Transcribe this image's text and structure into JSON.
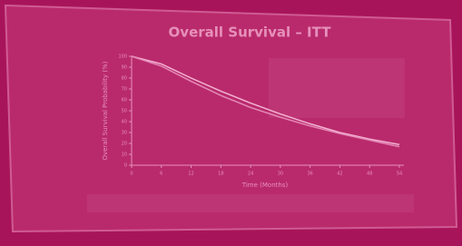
{
  "chart_data": {
    "type": "line",
    "title": "Overall Survival – ITT",
    "x_label": "Time (Months)",
    "y_label": "Overall Survival Probability (%)",
    "x": [
      0,
      6,
      12,
      18,
      24,
      30,
      36,
      42,
      48,
      54
    ],
    "series": [
      {
        "color": "#f3b3d2",
        "values": [
          100,
          93,
          80,
          68,
          57,
          47,
          38,
          30,
          24,
          19
        ]
      },
      {
        "color": "#e58ab8",
        "values": [
          100,
          91,
          77,
          64,
          53,
          44,
          36,
          29,
          23,
          17
        ]
      }
    ],
    "xlim": [
      0,
      54
    ],
    "xticks": [
      0,
      6,
      12,
      18,
      24,
      30,
      36,
      42,
      48,
      54
    ],
    "ylim": [
      0,
      100
    ],
    "yticks": [
      0,
      10,
      20,
      30,
      40,
      50,
      60,
      70,
      80,
      90,
      100
    ]
  }
}
